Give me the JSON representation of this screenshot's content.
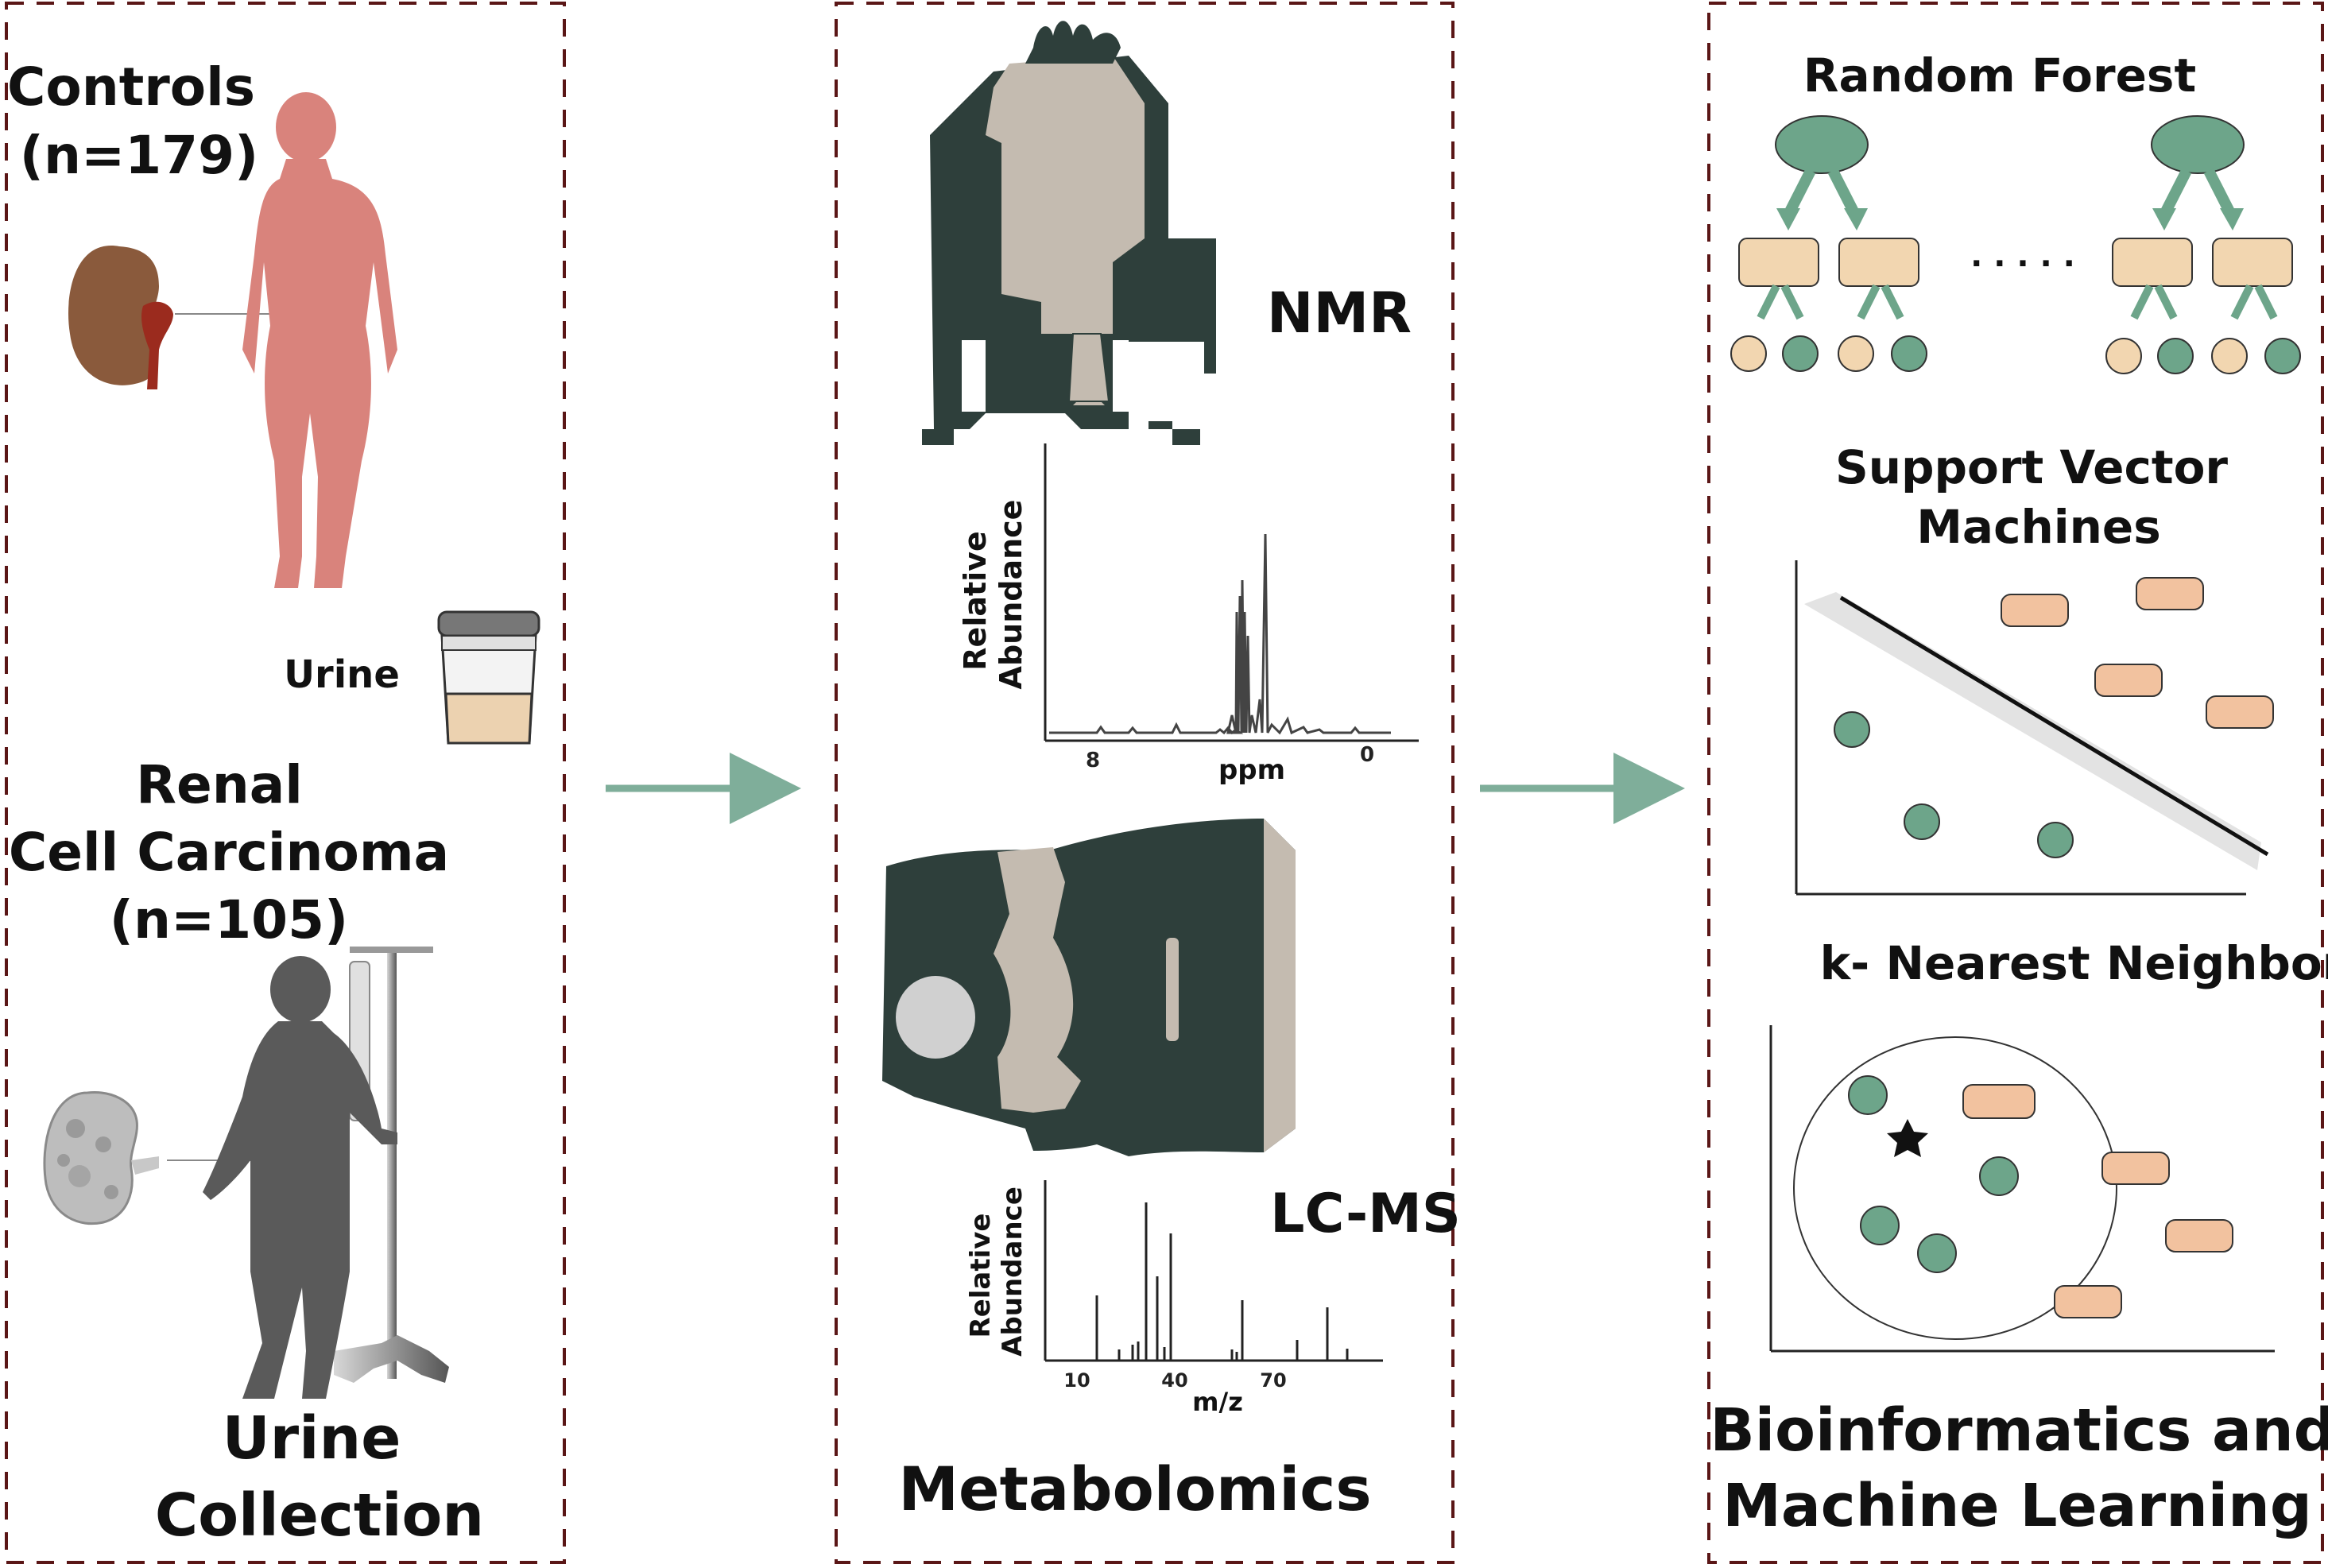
{
  "panel1": {
    "controls_label": "Controls",
    "controls_n": "(n=179)",
    "urine_label": "Urine",
    "rcc_line1": "Renal",
    "rcc_line2": "Cell Carcinoma",
    "rcc_n": "(n=105)",
    "title_line1": "Urine",
    "title_line2": "Collection"
  },
  "panel2": {
    "nmr_label": "NMR",
    "nmr_ylabel_line1": "Relative",
    "nmr_ylabel_line2": "Abundance",
    "nmr_xlabel": "ppm",
    "nmr_ticks": [
      "8",
      "0"
    ],
    "lcms_label": "LC-MS",
    "lcms_ylabel_line1": "Relative",
    "lcms_ylabel_line2": "Abundance",
    "lcms_xlabel": "m/z",
    "lcms_ticks": [
      "10",
      "40",
      "70"
    ],
    "title": "Metabolomics"
  },
  "panel3": {
    "rf_title": "Random Forest",
    "rf_ellipsis": ". . . . .",
    "svm_title_line1": "Support Vector",
    "svm_title_line2": "Machines",
    "knn_title": "k- Nearest Neighbor",
    "title_line1": "Bioinformatics and",
    "title_line2": "Machine Learning"
  },
  "colors": {
    "panel_border": "#5a1616",
    "arrow": "#7fae9a",
    "green_node": "#6da58a",
    "orange_node": "#f2c29f",
    "tan_node": "#f2d6b0",
    "instrument_dark": "#2e3f3b",
    "instrument_light": "#c4bbb0",
    "healthy_silhouette": "#d9837c",
    "patient_silhouette": "#5a5a5a",
    "kidney": "#8a5a3c",
    "urine": "#ecd2b0"
  }
}
